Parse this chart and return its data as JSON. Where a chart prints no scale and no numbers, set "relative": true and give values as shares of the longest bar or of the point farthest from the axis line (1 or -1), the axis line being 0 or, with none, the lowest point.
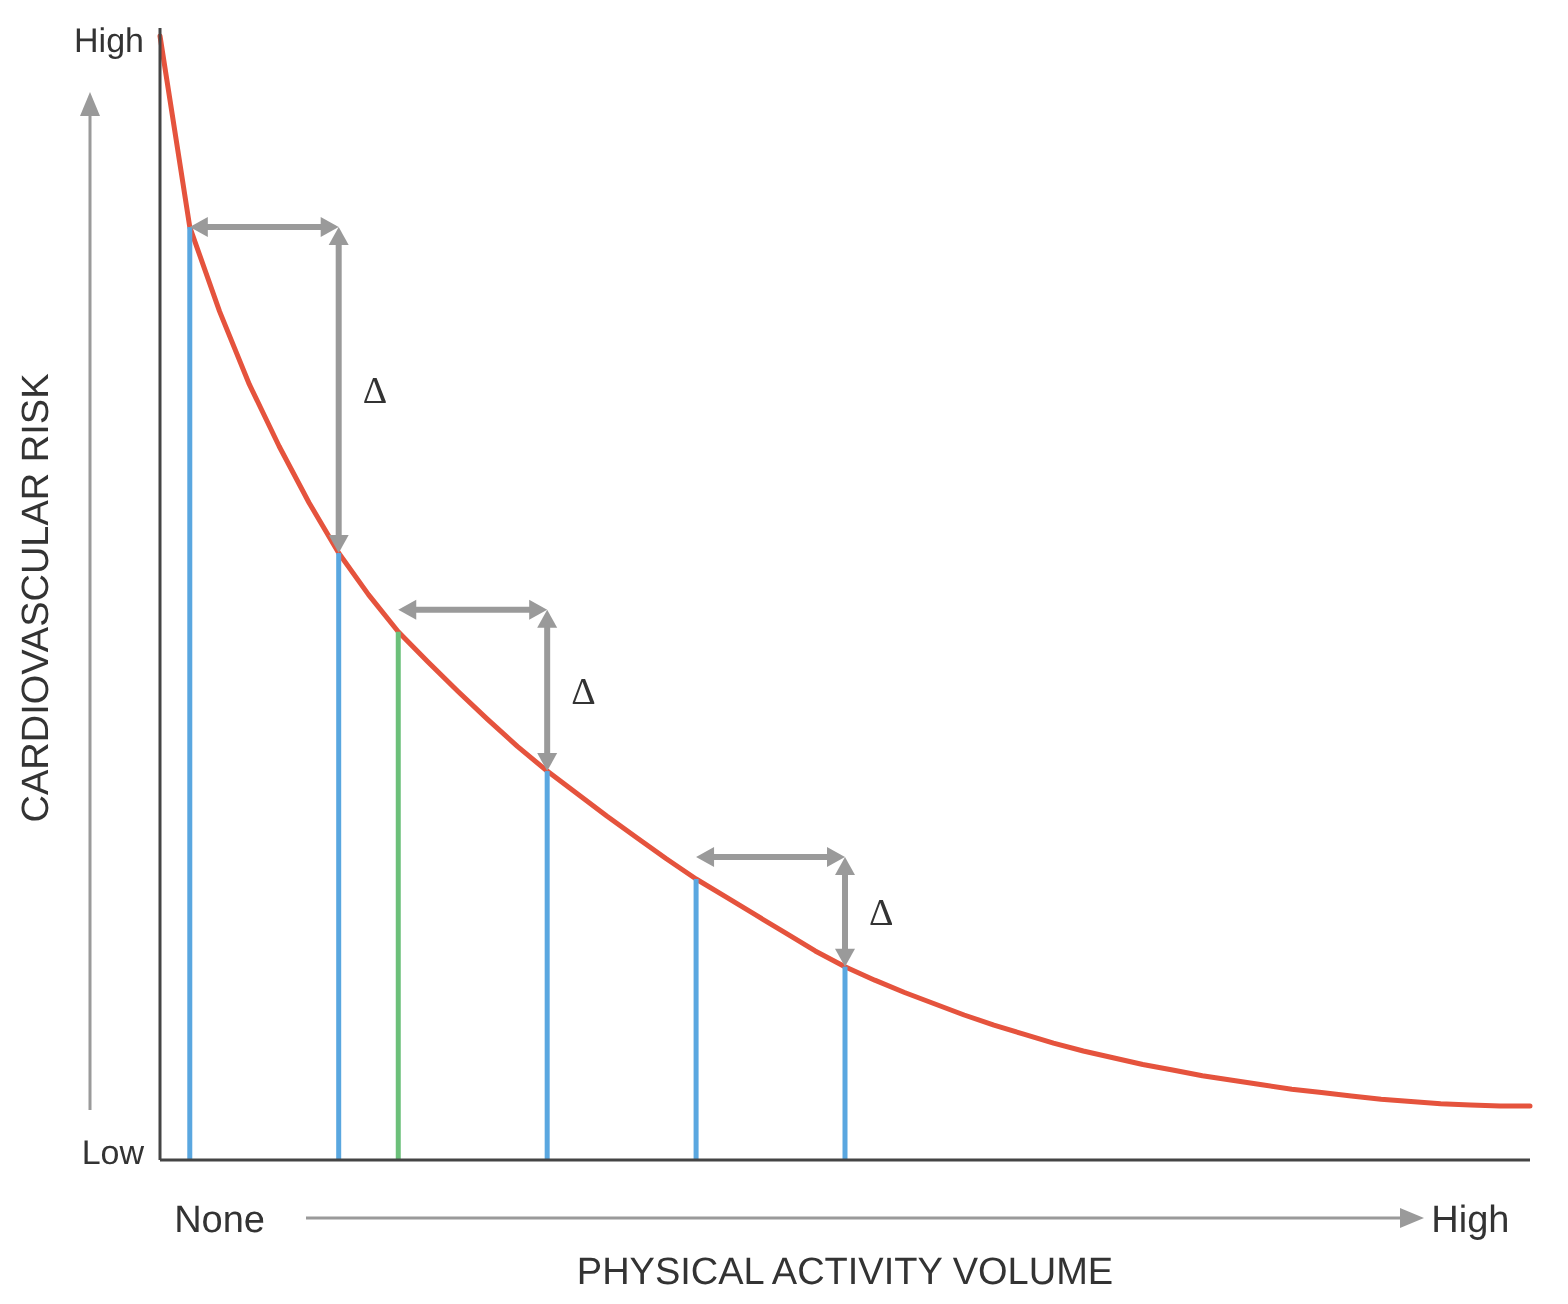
{
  "chart_data": {
    "type": "line",
    "relative": true,
    "xlabel": "PHYSICAL ACTIVITY VOLUME",
    "ylabel": "CARDIOVASCULAR RISK",
    "categories": [
      null,
      null,
      "None",
      null,
      null,
      null,
      null,
      null,
      null,
      null,
      null,
      null,
      null,
      null,
      null,
      null,
      null,
      null,
      null,
      null,
      null,
      null,
      null,
      null,
      null,
      null,
      null,
      null,
      null,
      null,
      null,
      null,
      null,
      null,
      null,
      null,
      null,
      null,
      null,
      null,
      null,
      null,
      null,
      null,
      "High",
      null,
      null
    ],
    "series": [
      {
        "color": "#e5533d",
        "values": [
          1,
          0.83,
          0.755,
          0.69,
          0.635,
          0.585,
          0.54,
          0.503,
          0.47,
          0.443,
          0.417,
          0.392,
          0.368,
          0.346,
          0.326,
          0.306,
          0.287,
          0.268,
          0.25,
          0.234,
          0.218,
          0.202,
          0.186,
          0.172,
          0.16,
          0.149,
          0.139,
          0.129,
          0.12,
          0.112,
          0.104,
          0.097,
          0.091,
          0.085,
          0.08,
          0.075,
          0.071,
          0.067,
          0.063,
          0.06,
          0.057,
          0.054,
          0.052,
          0.05,
          0.049,
          0.048,
          0.048
        ]
      },
      {
        "type": "bar",
        "values": [
          null,
          0.83,
          null,
          null,
          null,
          null,
          0.54,
          null,
          0.47,
          null,
          null,
          null,
          null,
          0.346,
          null,
          null,
          null,
          null,
          0.25,
          null,
          null,
          null,
          null,
          0.172,
          null,
          null,
          null,
          null,
          null,
          null,
          null,
          null,
          null,
          null,
          null,
          null,
          null,
          null,
          null,
          null,
          null,
          null,
          null,
          null,
          null,
          null,
          null
        ],
        "colors": [
          null,
          "#5aa7e0",
          null,
          null,
          null,
          null,
          "#5aa7e0",
          null,
          "#6cc07a",
          null,
          null,
          null,
          null,
          "#5aa7e0",
          null,
          null,
          null,
          null,
          "#5aa7e0",
          null,
          null,
          null,
          null,
          "#5aa7e0",
          null,
          null,
          null,
          null,
          null,
          null,
          null,
          null,
          null,
          null,
          null,
          null,
          null,
          null,
          null,
          null,
          null,
          null,
          null,
          null,
          null,
          null,
          null
        ]
      }
    ],
    "annotations": [
      "High",
      "Low",
      "Δ",
      "Δ",
      "Δ"
    ]
  }
}
